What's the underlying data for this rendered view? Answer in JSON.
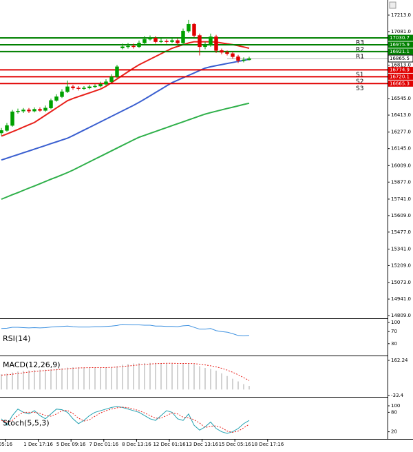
{
  "chart_data": [
    {
      "type": "candlestick",
      "open": [
        16270,
        16290,
        16330,
        16440,
        16445,
        16455,
        16445,
        16460,
        16450,
        16470,
        16530,
        16560,
        16600,
        16640,
        16630,
        16625,
        16630,
        16640,
        16645,
        16660,
        16680,
        16720,
        16950,
        16960,
        16965,
        16960,
        16990,
        17020,
        17030,
        17000,
        17005,
        17000,
        17010,
        16990,
        17085,
        17140,
        17050,
        16960,
        16975,
        17040,
        16930,
        16915,
        16905,
        16880,
        16850,
        16855
      ],
      "high": [
        16310,
        16350,
        16455,
        16465,
        16470,
        16470,
        16475,
        16475,
        16490,
        16545,
        16580,
        16620,
        16690,
        16655,
        16645,
        16645,
        16655,
        16660,
        16680,
        16700,
        16740,
        16815,
        16985,
        16990,
        16985,
        17010,
        17045,
        17050,
        17045,
        17025,
        17020,
        17030,
        17025,
        17105,
        17175,
        17150,
        17065,
        17000,
        17065,
        17055,
        16945,
        16930,
        16920,
        16895,
        16875,
        16880
      ],
      "low": [
        16250,
        16280,
        16320,
        16425,
        16430,
        16430,
        16435,
        16440,
        16440,
        16460,
        16520,
        16550,
        16590,
        16615,
        16610,
        16615,
        16620,
        16630,
        16635,
        16650,
        16670,
        16710,
        16940,
        16945,
        16945,
        16950,
        16980,
        17010,
        16985,
        16990,
        16985,
        16990,
        16975,
        16980,
        17070,
        17035,
        16890,
        16940,
        16960,
        16910,
        16900,
        16890,
        16865,
        16830,
        16835,
        16850
      ],
      "close": [
        16290,
        16330,
        16440,
        16445,
        16455,
        16445,
        16460,
        16450,
        16470,
        16530,
        16560,
        16600,
        16640,
        16630,
        16625,
        16630,
        16640,
        16645,
        16660,
        16680,
        16720,
        16800,
        16960,
        16965,
        16960,
        16990,
        17020,
        17030,
        17000,
        17005,
        17000,
        17010,
        16990,
        17085,
        17140,
        17050,
        16960,
        16975,
        17040,
        16930,
        16915,
        16905,
        16880,
        16850,
        16855,
        16865
      ],
      "up_color": "#00a000",
      "down_color": "#e00000",
      "lines": [
        {
          "color": "#e8201a",
          "values": [
            16245,
            16262,
            16280,
            16298,
            16317,
            16336,
            16354,
            16383,
            16412,
            16441,
            16470,
            16499,
            16528,
            16546,
            16561,
            16576,
            16591,
            16606,
            16621,
            16644,
            16673,
            16702,
            16731,
            16760,
            16789,
            16816,
            16838,
            16860,
            16882,
            16904,
            16926,
            16948,
            16962,
            16976,
            16990,
            17000,
            17000,
            17000,
            17000,
            16997,
            16990,
            16983,
            16977,
            16968,
            16958,
            16948
          ]
        },
        {
          "color": "#3a5fd0",
          "values": [
            16054,
            16068,
            16083,
            16097,
            16112,
            16126,
            16141,
            16155,
            16170,
            16185,
            16199,
            16214,
            16228,
            16249,
            16271,
            16293,
            16315,
            16337,
            16359,
            16381,
            16403,
            16425,
            16447,
            16469,
            16491,
            16515,
            16541,
            16567,
            16594,
            16620,
            16647,
            16673,
            16692,
            16712,
            16731,
            16750,
            16770,
            16789,
            16800,
            16809,
            16817,
            16826,
            16834,
            16843,
            16851,
            16860
          ]
        },
        {
          "color": "#2fb04a",
          "values": [
            15740,
            15758,
            15776,
            15793,
            15811,
            15829,
            15846,
            15864,
            15882,
            15900,
            15917,
            15935,
            15953,
            15973,
            15995,
            16017,
            16039,
            16061,
            16083,
            16105,
            16127,
            16149,
            16171,
            16193,
            16215,
            16236,
            16251,
            16267,
            16282,
            16298,
            16313,
            16329,
            16344,
            16359,
            16375,
            16390,
            16406,
            16421,
            16433,
            16444,
            16455,
            16466,
            16476,
            16487,
            16498,
            16508
          ]
        }
      ],
      "levels": [
        {
          "label": "R3",
          "value": 17030.7,
          "color": "#008000"
        },
        {
          "label": "R2",
          "value": 16975.9,
          "color": "#008000"
        },
        {
          "label": "R1",
          "value": 16921.1,
          "color": "#008000"
        },
        {
          "label": "S1",
          "value": 16774.9,
          "color": "#e00000"
        },
        {
          "label": "S2",
          "value": 16720.1,
          "color": "#e00000"
        },
        {
          "label": "S3",
          "value": 16665.3,
          "color": "#e00000"
        }
      ],
      "last_price": 16865.5,
      "ylim": [
        14787,
        17334
      ],
      "yticks": [
        {
          "value": 17213,
          "label": "17213.0"
        },
        {
          "value": 17081,
          "label": "17081.0"
        },
        {
          "value": 16813,
          "label": "16813.0"
        },
        {
          "value": 16545,
          "label": "16545.0"
        },
        {
          "value": 16413,
          "label": "16413.0"
        },
        {
          "value": 16277,
          "label": "16277.0"
        },
        {
          "value": 16145,
          "label": "16145.0"
        },
        {
          "value": 16009,
          "label": "16009.0"
        },
        {
          "value": 15877,
          "label": "15877.0"
        },
        {
          "value": 15741,
          "label": "15741.0"
        },
        {
          "value": 15609,
          "label": "15609.0"
        },
        {
          "value": 15477,
          "label": "15477.0"
        },
        {
          "value": 15341,
          "label": "15341.0"
        },
        {
          "value": 15209,
          "label": "15209.0"
        },
        {
          "value": 15073,
          "label": "15073.0"
        },
        {
          "value": 14941,
          "label": "14941.0"
        },
        {
          "value": 14809,
          "label": "14809.0"
        }
      ],
      "x_labels": [
        "05:16",
        "1 Dec 17:16",
        "5 Dec 09:16",
        "7 Dec 01:16",
        "8 Dec 13:16",
        "12 Dec 01:16",
        "13 Dec 13:16",
        "15 Dec 05:16",
        "18 Dec 17:16"
      ]
    },
    {
      "type": "line",
      "title": "RSI(14)",
      "ylim": [
        0,
        100
      ],
      "yticks": [
        100,
        70,
        30
      ],
      "series": [
        {
          "color": "#3a8fe0",
          "style": "solid",
          "values": [
            80,
            81,
            84,
            84,
            83,
            82,
            83,
            82,
            83,
            85,
            86,
            87,
            88,
            86,
            85,
            85,
            85,
            86,
            86,
            87,
            88,
            90,
            94,
            93,
            92,
            92,
            91,
            91,
            88,
            88,
            87,
            87,
            86,
            89,
            90,
            84,
            78,
            78,
            80,
            73,
            70,
            68,
            63,
            57,
            56,
            57
          ]
        }
      ]
    },
    {
      "type": "histogram-line",
      "title": "MACD(12,26,9)",
      "ylim": [
        -33.4,
        162.24
      ],
      "yticks": [
        162.24,
        -33.4
      ],
      "bar_color": "#b4b4b4",
      "values": [
        85,
        88,
        95,
        100,
        104,
        106,
        108,
        110,
        110,
        112,
        115,
        118,
        122,
        124,
        124,
        123,
        122,
        121,
        121,
        122,
        125,
        130,
        138,
        142,
        145,
        146,
        147,
        148,
        148,
        147,
        145,
        143,
        140,
        142,
        146,
        140,
        130,
        120,
        115,
        105,
        90,
        75,
        60,
        45,
        30,
        20
      ],
      "series": [
        {
          "color": "#e8201a",
          "style": "dashed",
          "values": [
            80,
            82,
            85,
            89,
            93,
            97,
            100,
            103,
            106,
            108,
            110,
            113,
            115,
            118,
            120,
            121,
            122,
            122,
            122,
            122,
            123,
            125,
            128,
            131,
            134,
            137,
            140,
            142,
            144,
            145,
            146,
            146,
            145,
            145,
            145,
            144,
            141,
            137,
            132,
            126,
            118,
            108,
            96,
            82,
            66,
            50
          ]
        }
      ]
    },
    {
      "type": "line",
      "title": "Stoch(5,5,3)",
      "ylim": [
        0,
        100
      ],
      "yticks": [
        100,
        80,
        20
      ],
      "series": [
        {
          "color": "#20a0b0",
          "style": "solid",
          "values": [
            60,
            40,
            70,
            90,
            80,
            75,
            85,
            70,
            60,
            75,
            90,
            88,
            80,
            60,
            45,
            55,
            70,
            80,
            85,
            90,
            95,
            98,
            95,
            90,
            85,
            80,
            70,
            60,
            55,
            70,
            85,
            80,
            60,
            55,
            75,
            40,
            25,
            35,
            50,
            30,
            20,
            15,
            20,
            30,
            45,
            55
          ]
        },
        {
          "color": "#e8201a",
          "style": "dashed",
          "values": [
            55,
            50,
            55,
            70,
            80,
            80,
            80,
            77,
            70,
            68,
            75,
            85,
            86,
            76,
            62,
            53,
            57,
            68,
            78,
            85,
            90,
            94,
            96,
            94,
            90,
            85,
            78,
            70,
            62,
            62,
            70,
            78,
            75,
            65,
            63,
            57,
            47,
            33,
            37,
            38,
            33,
            22,
            18,
            22,
            32,
            43
          ]
        }
      ]
    }
  ]
}
